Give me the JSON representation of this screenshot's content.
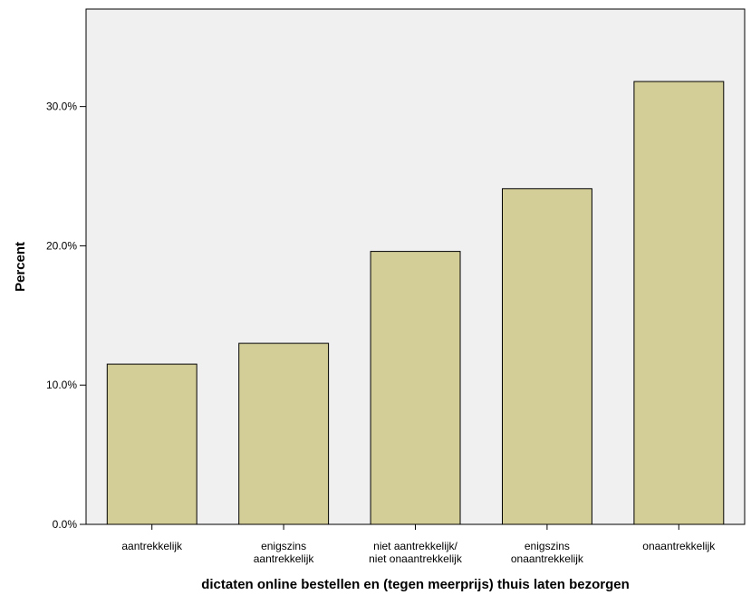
{
  "chart_data": {
    "type": "bar",
    "categories": [
      [
        "aantrekkelijk"
      ],
      [
        "enigszins",
        "aantrekkelijk"
      ],
      [
        "niet aantrekkelijk/",
        "niet onaantrekkelijk"
      ],
      [
        "enigszins",
        "onaantrekkelijk"
      ],
      [
        "onaantrekkelijk"
      ]
    ],
    "values": [
      11.5,
      13.0,
      19.6,
      24.1,
      31.8
    ],
    "title": "",
    "xlabel": "dictaten online bestellen en (tegen meerprijs) thuis laten bezorgen",
    "ylabel": "Percent",
    "ylim": [
      0,
      37
    ],
    "yticks": [
      0,
      10,
      20,
      30
    ],
    "ytick_labels": [
      "0.0%",
      "10.0%",
      "20.0%",
      "30.0%"
    ],
    "grid": false,
    "legend": "none",
    "colors": {
      "plot_background": "#f0f0f0",
      "bar_fill": "#d3ce97",
      "bar_stroke": "#000000",
      "axis": "#000000"
    }
  }
}
